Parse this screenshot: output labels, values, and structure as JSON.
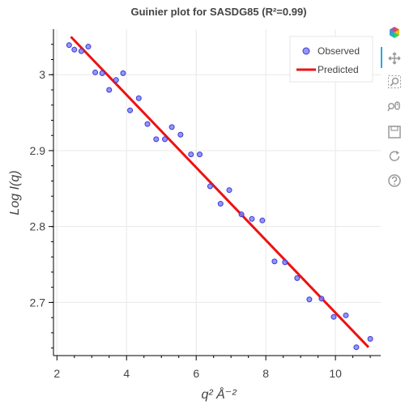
{
  "chart_data": {
    "type": "scatter",
    "title": "Guinier plot for SASDG85 (R²=0.99)",
    "xlabel": "q² Å⁻²",
    "ylabel": "Log I(q)",
    "xlim": [
      1.9,
      11.3
    ],
    "ylim": [
      2.63,
      3.06
    ],
    "x_ticks": [
      2,
      4,
      6,
      8,
      10
    ],
    "y_ticks": [
      2.7,
      2.8,
      2.9,
      3
    ],
    "x_tick_labels": [
      "2",
      "4",
      "6",
      "8",
      "10"
    ],
    "y_tick_labels": [
      "2.7",
      "2.8",
      "2.9",
      "3"
    ],
    "grid": true,
    "legend_position": "top-right",
    "series": [
      {
        "name": "Observed",
        "kind": "scatter",
        "color": "#7a7af5",
        "x": [
          2.35,
          2.5,
          2.7,
          2.9,
          3.1,
          3.3,
          3.5,
          3.7,
          3.9,
          4.1,
          4.35,
          4.6,
          4.85,
          5.1,
          5.3,
          5.55,
          5.85,
          6.1,
          6.4,
          6.7,
          6.95,
          7.3,
          7.6,
          7.9,
          8.25,
          8.55,
          8.9,
          9.25,
          9.6,
          9.95,
          10.3,
          10.6,
          11.0
        ],
        "y": [
          3.039,
          3.033,
          3.031,
          3.037,
          3.003,
          3.002,
          2.98,
          2.993,
          3.002,
          2.953,
          2.969,
          2.935,
          2.915,
          2.915,
          2.931,
          2.921,
          2.895,
          2.895,
          2.853,
          2.83,
          2.848,
          2.816,
          2.81,
          2.808,
          2.754,
          2.753,
          2.732,
          2.704,
          2.705,
          2.681,
          2.683,
          2.641,
          2.652
        ]
      },
      {
        "name": "Predicted",
        "kind": "line",
        "color": "#ee1111",
        "x": [
          2.4,
          10.95
        ],
        "y": [
          3.05,
          2.641
        ]
      }
    ]
  },
  "toolbar": {
    "tools": [
      {
        "name": "bokeh-logo-icon"
      },
      {
        "name": "pan-tool-icon"
      },
      {
        "name": "box-zoom-tool-icon"
      },
      {
        "name": "wheel-zoom-tool-icon"
      },
      {
        "name": "save-tool-icon"
      },
      {
        "name": "reset-tool-icon"
      },
      {
        "name": "help-tool-icon"
      }
    ]
  }
}
